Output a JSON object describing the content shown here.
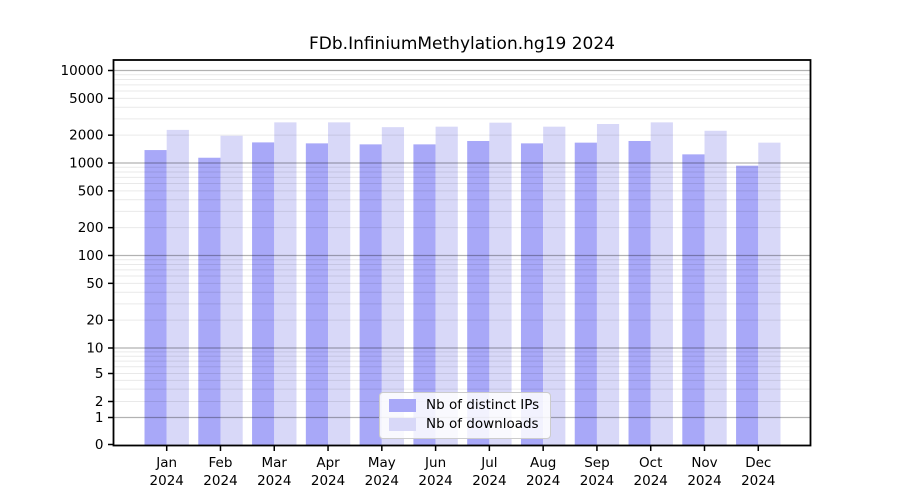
{
  "chart_data": {
    "type": "bar",
    "title": "FDb.InfiniumMethylation.hg19 2024",
    "categories": [
      "Jan 2024",
      "Feb 2024",
      "Mar 2024",
      "Apr 2024",
      "May 2024",
      "Jun 2024",
      "Jul 2024",
      "Aug 2024",
      "Sep 2024",
      "Oct 2024",
      "Nov 2024",
      "Dec 2024"
    ],
    "series": [
      {
        "name": "Nb of distinct IPs",
        "color": "#a8a8f8",
        "values": [
          1380,
          1140,
          1670,
          1630,
          1590,
          1590,
          1730,
          1630,
          1660,
          1730,
          1240,
          935
        ]
      },
      {
        "name": "Nb of downloads",
        "color": "#d8d8f8",
        "values": [
          2280,
          1970,
          2750,
          2750,
          2440,
          2470,
          2730,
          2470,
          2640,
          2750,
          2230,
          1660
        ]
      }
    ],
    "xlabel": "",
    "ylabel": "",
    "yscale": "symlog",
    "y_ticks": [
      10000,
      5000,
      2000,
      1000,
      500,
      200,
      100,
      50,
      20,
      10,
      5,
      2,
      1,
      0
    ],
    "ylim": [
      0,
      13000
    ],
    "grid": "both",
    "legend_position": "lower center",
    "colors": {
      "major_gridline": "rgba(0,0,0,0.30)",
      "minor_gridline": "rgba(0,0,0,0.085)",
      "axis": "#000000"
    }
  }
}
